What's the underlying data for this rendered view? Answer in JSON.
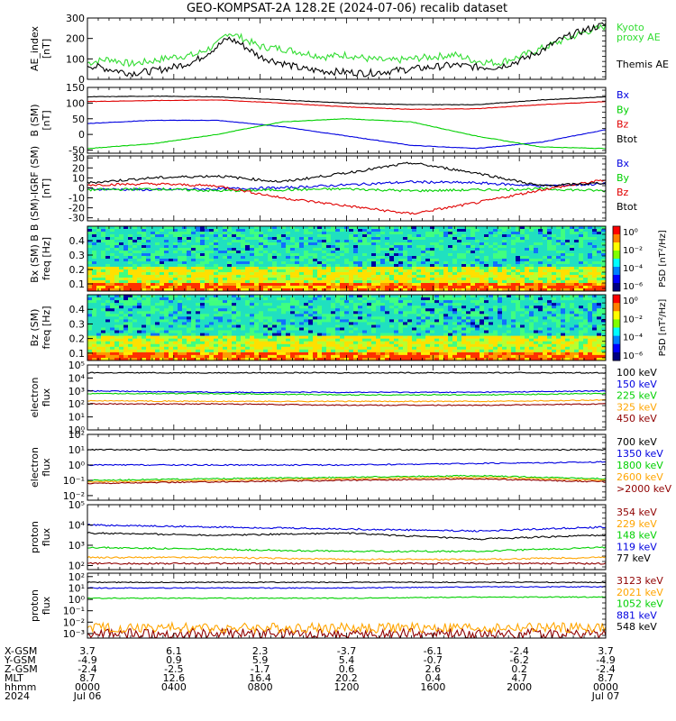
{
  "title": "GEO-KOMPSAT-2A 128.2E (2024-07-06) recalib dataset",
  "colors": {
    "black": "#000000",
    "blue": "#0000e0",
    "green": "#00d000",
    "red": "#e00000",
    "orange": "#ffa500",
    "darkred": "#900000",
    "lightgreen": "#33dd33"
  },
  "x_axis": {
    "rows": [
      {
        "label": "X-GSM",
        "values": [
          "3.7",
          "6.1",
          "2.3",
          "-3.7",
          "-6.1",
          "-2.4",
          "3.7"
        ]
      },
      {
        "label": "Y-GSM",
        "values": [
          "-4.9",
          "0.9",
          "5.9",
          "5.4",
          "-0.7",
          "-6.2",
          "-4.9"
        ]
      },
      {
        "label": "Z-GSM",
        "values": [
          "-2.4",
          "-2.5",
          "-1.7",
          "0.6",
          "2.6",
          "0.2",
          "-2.4"
        ]
      },
      {
        "label": "MLT",
        "values": [
          "8.7",
          "12.6",
          "16.4",
          "20.2",
          "0.4",
          "4.7",
          "8.7"
        ]
      },
      {
        "label": "hhmm",
        "values": [
          "0000",
          "0400",
          "0800",
          "1200",
          "1600",
          "2000",
          "0000"
        ]
      },
      {
        "label": "2024",
        "values": [
          "Jul 06",
          "",
          "",
          "",
          "",
          "",
          "Jul 07"
        ]
      }
    ]
  },
  "chart_data": [
    {
      "type": "line",
      "ylabel": "AE_index\n[nT]",
      "yticks": [
        "0",
        "100",
        "200",
        "300"
      ],
      "ylim": [
        0,
        300
      ],
      "x_range_hours": [
        0,
        24
      ],
      "series": [
        {
          "name": "Kyoto\nproxy AE",
          "color": "#33dd33",
          "x": [
            0,
            1,
            2,
            3,
            4,
            5,
            6,
            6.5,
            7,
            8,
            9,
            10,
            11,
            12,
            13,
            14,
            15,
            16,
            17,
            18,
            19,
            20,
            21,
            22,
            23,
            24
          ],
          "y": [
            80,
            100,
            75,
            90,
            110,
            120,
            170,
            230,
            210,
            160,
            150,
            130,
            110,
            120,
            100,
            90,
            100,
            110,
            120,
            90,
            80,
            110,
            150,
            190,
            230,
            260
          ]
        },
        {
          "name": "Themis AE",
          "color": "#000000",
          "x": [
            0,
            1,
            2,
            3,
            4,
            5,
            6,
            6.5,
            7,
            8,
            9,
            10,
            11,
            12,
            13,
            14,
            15,
            16,
            17,
            18,
            19,
            20,
            21,
            22,
            23,
            24
          ],
          "y": [
            70,
            50,
            30,
            40,
            60,
            90,
            160,
            200,
            180,
            110,
            80,
            50,
            40,
            35,
            30,
            40,
            50,
            60,
            70,
            60,
            60,
            90,
            140,
            200,
            240,
            270
          ]
        }
      ]
    },
    {
      "type": "line",
      "ylabel": "B (SM)\n[nT]",
      "yticks": [
        "-50",
        "0",
        "50",
        "100",
        "150"
      ],
      "ylim": [
        -60,
        150
      ],
      "x_range_hours": [
        0,
        24
      ],
      "series": [
        {
          "name": "Bx",
          "color": "#0000e0",
          "x": [
            0,
            3,
            6,
            9,
            12,
            15,
            18,
            21,
            24
          ],
          "y": [
            35,
            45,
            45,
            25,
            -5,
            -35,
            -45,
            -25,
            15
          ]
        },
        {
          "name": "By",
          "color": "#00d000",
          "x": [
            0,
            3,
            6,
            9,
            12,
            15,
            18,
            21,
            24
          ],
          "y": [
            -45,
            -30,
            0,
            40,
            50,
            40,
            -5,
            -40,
            -45
          ]
        },
        {
          "name": "Bz",
          "color": "#e00000",
          "x": [
            0,
            3,
            6,
            9,
            12,
            15,
            18,
            21,
            24
          ],
          "y": [
            105,
            108,
            110,
            100,
            88,
            80,
            82,
            95,
            105
          ]
        },
        {
          "name": "Btot",
          "color": "#000000",
          "x": [
            0,
            3,
            6,
            9,
            12,
            15,
            18,
            21,
            24
          ],
          "y": [
            120,
            122,
            120,
            110,
            100,
            95,
            95,
            110,
            120
          ]
        }
      ]
    },
    {
      "type": "line",
      "ylabel": "B (SM)-IGRF (SM)\n[nT]",
      "yticks": [
        "-30",
        "-20",
        "-10",
        "0",
        "10",
        "20",
        "30"
      ],
      "ylim": [
        -33,
        32
      ],
      "x_range_hours": [
        0,
        24
      ],
      "series": [
        {
          "name": "Bx",
          "color": "#0000e0",
          "x": [
            0,
            3,
            6,
            9,
            12,
            15,
            18,
            21,
            24
          ],
          "y": [
            -1,
            -2,
            -1,
            0,
            3,
            6,
            5,
            2,
            4
          ]
        },
        {
          "name": "By",
          "color": "#00d000",
          "x": [
            0,
            3,
            6,
            9,
            12,
            15,
            18,
            21,
            24
          ],
          "y": [
            -2,
            -1,
            -3,
            -2,
            -1,
            -3,
            -2,
            -1,
            -3
          ]
        },
        {
          "name": "Bz",
          "color": "#e00000",
          "x": [
            0,
            3,
            6,
            9,
            12,
            15,
            18,
            21,
            24
          ],
          "y": [
            3,
            4,
            2,
            -10,
            -18,
            -26,
            -15,
            -2,
            8
          ]
        },
        {
          "name": "Btot",
          "color": "#000000",
          "x": [
            0,
            3,
            6,
            9,
            12,
            15,
            18,
            21,
            24
          ],
          "y": [
            5,
            10,
            12,
            6,
            15,
            25,
            15,
            2,
            5
          ]
        }
      ]
    },
    {
      "type": "heatmap",
      "ylabel": "Bx (SM) B\nfreq [Hz]",
      "yticks": [
        "0.1",
        "0.2",
        "0.3",
        "0.4"
      ],
      "ylim": [
        0.05,
        0.5
      ],
      "colorbar_label": "PSD [nT²/Hz]",
      "colorbar_ticks": [
        "10⁰",
        "10⁻²",
        "10⁻⁴",
        "10⁻⁶"
      ]
    },
    {
      "type": "heatmap",
      "ylabel": "Bz (SM)\nfreq [Hz]",
      "yticks": [
        "0.1",
        "0.2",
        "0.3",
        "0.4"
      ],
      "ylim": [
        0.05,
        0.5
      ],
      "colorbar_label": "PSD [nT²/Hz]",
      "colorbar_ticks": [
        "10⁰",
        "10⁻²",
        "10⁻⁴",
        "10⁻⁶"
      ]
    },
    {
      "type": "line",
      "log": true,
      "ylabel": "electron\nflux",
      "yticks": [
        "10⁰",
        "10¹",
        "10²",
        "10³",
        "10⁴",
        "10⁵"
      ],
      "ylim_log": [
        0,
        5
      ],
      "x_range_hours": [
        0,
        24
      ],
      "series": [
        {
          "name": "100 keV",
          "color": "#000000",
          "x": [
            0,
            6,
            12,
            18,
            24
          ],
          "y": [
            4.4,
            4.4,
            4.4,
            4.4,
            4.4
          ]
        },
        {
          "name": "150 keV",
          "color": "#0000e0",
          "x": [
            0,
            6,
            12,
            18,
            24
          ],
          "y": [
            3.0,
            2.9,
            2.9,
            2.9,
            3.0
          ]
        },
        {
          "name": "225 keV",
          "color": "#00d000",
          "x": [
            0,
            6,
            12,
            18,
            24
          ],
          "y": [
            2.8,
            2.8,
            2.7,
            2.7,
            2.8
          ]
        },
        {
          "name": "325 keV",
          "color": "#ffa500",
          "x": [
            0,
            6,
            12,
            18,
            24
          ],
          "y": [
            2.25,
            2.2,
            2.2,
            2.2,
            2.3
          ]
        },
        {
          "name": "450 keV",
          "color": "#900000",
          "x": [
            0,
            6,
            12,
            18,
            24
          ],
          "y": [
            2.0,
            2.0,
            1.9,
            1.9,
            2.0
          ]
        }
      ]
    },
    {
      "type": "line",
      "log": true,
      "ylabel": "electron\nflux",
      "yticks": [
        "10⁻²",
        "10⁻¹",
        "10⁰",
        "10¹",
        "10²"
      ],
      "ylim_log": [
        -2.3,
        2
      ],
      "x_range_hours": [
        0,
        24
      ],
      "series": [
        {
          "name": "700 keV",
          "color": "#000000",
          "x": [
            0,
            6,
            12,
            18,
            24
          ],
          "y": [
            1.0,
            1.0,
            1.0,
            1.0,
            1.0
          ]
        },
        {
          "name": "1350 keV",
          "color": "#0000e0",
          "x": [
            0,
            6,
            12,
            18,
            24
          ],
          "y": [
            0.0,
            0.0,
            0.0,
            0.1,
            0.2
          ]
        },
        {
          "name": "1800 keV",
          "color": "#00d000",
          "x": [
            0,
            6,
            12,
            18,
            24
          ],
          "y": [
            -1.0,
            -0.9,
            -0.8,
            -0.7,
            -0.9
          ]
        },
        {
          "name": "2600 keV",
          "color": "#ffa500",
          "x": [
            0,
            6,
            12,
            18,
            24
          ],
          "y": [
            -1.1,
            -1.0,
            -0.9,
            -0.8,
            -1.0
          ]
        },
        {
          "name": ">2000 keV",
          "color": "#900000",
          "x": [
            0,
            6,
            12,
            18,
            24
          ],
          "y": [
            -1.2,
            -1.1,
            -1.0,
            -0.9,
            -1.1
          ]
        }
      ]
    },
    {
      "type": "line",
      "log": true,
      "ylabel": "proton\nflux",
      "yticks": [
        "10²",
        "10³",
        "10⁴",
        "10⁵"
      ],
      "ylim_log": [
        1.8,
        5
      ],
      "x_range_hours": [
        0,
        24
      ],
      "series": [
        {
          "name": "354 keV",
          "color": "#900000",
          "x": [
            0,
            6,
            12,
            18,
            24
          ],
          "y": [
            2.1,
            2.1,
            2.1,
            2.1,
            2.1
          ]
        },
        {
          "name": "229 keV",
          "color": "#ffa500",
          "x": [
            0,
            6,
            12,
            18,
            24
          ],
          "y": [
            2.4,
            2.4,
            2.3,
            2.3,
            2.4
          ]
        },
        {
          "name": "148 keV",
          "color": "#00d000",
          "x": [
            0,
            6,
            12,
            18,
            24
          ],
          "y": [
            2.9,
            2.8,
            2.7,
            2.7,
            2.9
          ]
        },
        {
          "name": "119 keV",
          "color": "#0000e0",
          "x": [
            0,
            6,
            12,
            18,
            24
          ],
          "y": [
            4.0,
            3.9,
            3.8,
            3.7,
            3.9
          ]
        },
        {
          "name": "77 keV",
          "color": "#000000",
          "x": [
            0,
            6,
            12,
            18,
            24
          ],
          "y": [
            3.6,
            3.5,
            3.6,
            3.3,
            3.5
          ]
        }
      ]
    },
    {
      "type": "line",
      "log": true,
      "ylabel": "proton\nflux",
      "yticks": [
        "10⁻³",
        "10⁻²",
        "10⁻¹",
        "10⁰",
        "10¹",
        "10²"
      ],
      "ylim_log": [
        -3.4,
        2.3
      ],
      "x_range_hours": [
        0,
        24
      ],
      "series": [
        {
          "name": "3123 keV",
          "color": "#900000",
          "x": [
            0,
            6,
            12,
            18,
            24
          ],
          "y": [
            -3.0,
            -3.0,
            -3.0,
            -3.0,
            -3.0
          ]
        },
        {
          "name": "2021 keV",
          "color": "#ffa500",
          "x": [
            0,
            6,
            12,
            18,
            24
          ],
          "y": [
            -2.5,
            -2.5,
            -2.5,
            -2.5,
            -2.5
          ]
        },
        {
          "name": "1052 keV",
          "color": "#00d000",
          "x": [
            0,
            6,
            12,
            18,
            24
          ],
          "y": [
            0.1,
            0.1,
            0.1,
            0.2,
            0.2
          ]
        },
        {
          "name": "881 keV",
          "color": "#0000e0",
          "x": [
            0,
            6,
            12,
            18,
            24
          ],
          "y": [
            1.0,
            1.0,
            1.0,
            1.1,
            1.1
          ]
        },
        {
          "name": "548 keV",
          "color": "#000000",
          "x": [
            0,
            6,
            12,
            18,
            24
          ],
          "y": [
            1.5,
            1.5,
            1.5,
            1.5,
            1.5
          ]
        }
      ]
    }
  ]
}
